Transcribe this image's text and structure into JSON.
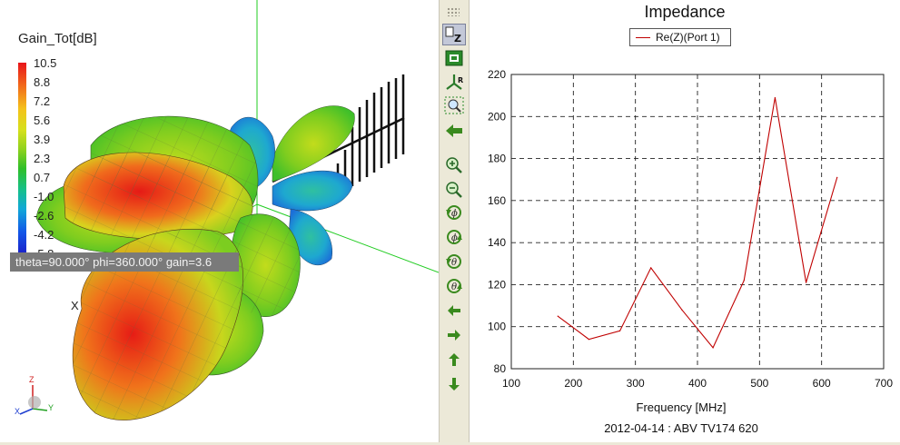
{
  "left_view": {
    "colorbar_title": "Gain_Tot[dB]",
    "colorbar_ticks": [
      "10.5",
      "8.8",
      "7.2",
      "5.6",
      "3.9",
      "2.3",
      "0.7",
      "-1.0",
      "-2.6",
      "-4.2",
      "-5.8"
    ],
    "readout": "theta=90.000° phi=360.000° gain=3.6",
    "axis_label_x": "X",
    "triad_labels": {
      "z": "Z",
      "x": "X",
      "y": "Y"
    },
    "colors": {
      "high": "#e8141a",
      "mid": "#d6e01c",
      "low": "#1c1ec8",
      "axis": "#22cc22"
    }
  },
  "toolbar": {
    "items": [
      {
        "icon": "select-z-icon",
        "active": true
      },
      {
        "icon": "zoom-fit-icon",
        "active": false
      },
      {
        "icon": "axes-r-icon",
        "active": false
      },
      {
        "icon": "zoom-region-icon",
        "active": false
      },
      {
        "icon": "back-arrow-icon",
        "active": false
      },
      {
        "icon": "zoom-in-icon",
        "active": false
      },
      {
        "icon": "zoom-out-icon",
        "active": false
      },
      {
        "icon": "rotate-phi-ccw-icon",
        "active": false
      },
      {
        "icon": "rotate-phi-cw-icon",
        "active": false
      },
      {
        "icon": "rotate-theta-ccw-icon",
        "active": false
      },
      {
        "icon": "rotate-theta-cw-icon",
        "active": false
      },
      {
        "icon": "pan-left-icon",
        "active": false
      },
      {
        "icon": "pan-right-icon",
        "active": false
      },
      {
        "icon": "pan-up-icon",
        "active": false
      },
      {
        "icon": "pan-down-icon",
        "active": false
      }
    ]
  },
  "chart_data": {
    "type": "line",
    "title": "Impedance",
    "xlabel": "Frequency [MHz]",
    "ylabel": "",
    "xlim": [
      100,
      700
    ],
    "ylim": [
      80,
      220
    ],
    "xticks": [
      100,
      200,
      300,
      400,
      500,
      600,
      700
    ],
    "yticks": [
      80,
      100,
      120,
      140,
      160,
      180,
      200,
      220
    ],
    "grid": true,
    "legend_position": "top-center",
    "series": [
      {
        "name": "Re(Z)(Port 1)",
        "color": "#c00000",
        "x": [
          175,
          225,
          275,
          325,
          375,
          425,
          475,
          525,
          575,
          625
        ],
        "y": [
          105,
          94,
          98,
          128,
          108,
          90,
          122,
          209,
          121,
          171
        ]
      }
    ],
    "footer": "2012-04-14 : ABV TV174 620"
  }
}
